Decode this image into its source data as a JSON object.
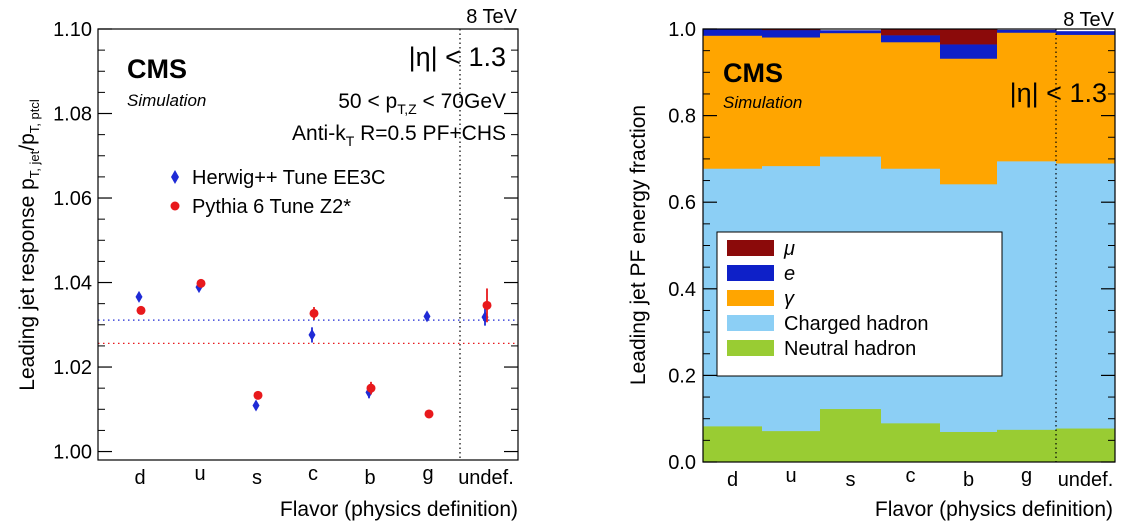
{
  "panels": {
    "left": {
      "energy": "8 TeV",
      "cms": "CMS",
      "simulation": "Simulation",
      "eta_cut": "|η| < 1.3",
      "pt_cut": "50 < p",
      "pt_sub": "T,Z",
      "pt_unit": " < 70GeV",
      "algo_pre": "Anti-k",
      "algo_sub": "T",
      "algo_post": " R=0.5 PF+CHS",
      "ylabel_main": "Leading jet response p",
      "ylabel_sub1": "T, jet",
      "ylabel_mid": "/p",
      "ylabel_sub2": "T, ptcl",
      "xlabel": "Flavor (physics definition)"
    },
    "right": {
      "energy": "8 TeV",
      "cms": "CMS",
      "simulation": "Simulation",
      "eta_cut": "|η| < 1.3",
      "ylabel": "Leading jet PF energy fraction",
      "xlabel": "Flavor (physics definition)"
    }
  },
  "chart_data": [
    {
      "type": "scatter",
      "categories": [
        "d",
        "u",
        "s",
        "c",
        "b",
        "g",
        "undef."
      ],
      "ylim": [
        0.998,
        1.1
      ],
      "yticks": [
        "1.00",
        "1.02",
        "1.04",
        "1.06",
        "1.08",
        "1.10"
      ],
      "ytick_values": [
        1.0,
        1.02,
        1.04,
        1.06,
        1.08,
        1.1
      ],
      "separator_after": "g",
      "series": [
        {
          "name": "Herwig++ Tune EE3C",
          "marker": "diamond",
          "color": "#1f2bd6",
          "values": [
            1.0366,
            1.0389,
            1.0109,
            1.0276,
            1.014,
            1.032,
            1.0318
          ],
          "errors": [
            0.0006,
            0.0005,
            0.001,
            0.0018,
            0.0014,
            0.0005,
            0.002
          ],
          "average_line": 1.0311
        },
        {
          "name": "Pythia 6 Tune Z2*",
          "marker": "circle",
          "color": "#e8191c",
          "values": [
            1.0334,
            1.0398,
            1.0133,
            1.0327,
            1.015,
            1.0089,
            1.0346
          ],
          "errors": [
            0.0005,
            0.0005,
            0.0008,
            0.0015,
            0.0015,
            0.0004,
            0.004
          ],
          "average_line": 1.0256
        }
      ]
    },
    {
      "type": "bar",
      "stacked": true,
      "categories": [
        "d",
        "u",
        "s",
        "c",
        "b",
        "g",
        "undef."
      ],
      "ylim": [
        0,
        1.0
      ],
      "yticks": [
        "0.0",
        "0.2",
        "0.4",
        "0.6",
        "0.8",
        "1.0"
      ],
      "ytick_values": [
        0.0,
        0.2,
        0.4,
        0.6,
        0.8,
        1.0
      ],
      "separator_after": "g",
      "legend_position": "middle-left",
      "series": [
        {
          "name": "Neutral hadron",
          "color": "#99cc33",
          "values": [
            0.083,
            0.072,
            0.123,
            0.09,
            0.07,
            0.075,
            0.078
          ]
        },
        {
          "name": "Charged hadron",
          "color": "#8ccff5",
          "values": [
            0.595,
            0.612,
            0.583,
            0.588,
            0.572,
            0.62,
            0.612
          ]
        },
        {
          "name": "γ",
          "color": "#ffa500",
          "values": [
            0.307,
            0.297,
            0.285,
            0.292,
            0.29,
            0.297,
            0.297
          ]
        },
        {
          "name": "e",
          "color": "#0e20c8",
          "values": [
            0.015,
            0.017,
            0.006,
            0.016,
            0.033,
            0.006,
            0.008
          ]
        },
        {
          "name": "μ",
          "color": "#8b0a0a",
          "values": [
            0.0,
            0.001,
            0.0,
            0.014,
            0.035,
            0.0,
            0.0
          ]
        }
      ],
      "legend_order": [
        "μ",
        "e",
        "γ",
        "Charged hadron",
        "Neutral hadron"
      ]
    }
  ]
}
